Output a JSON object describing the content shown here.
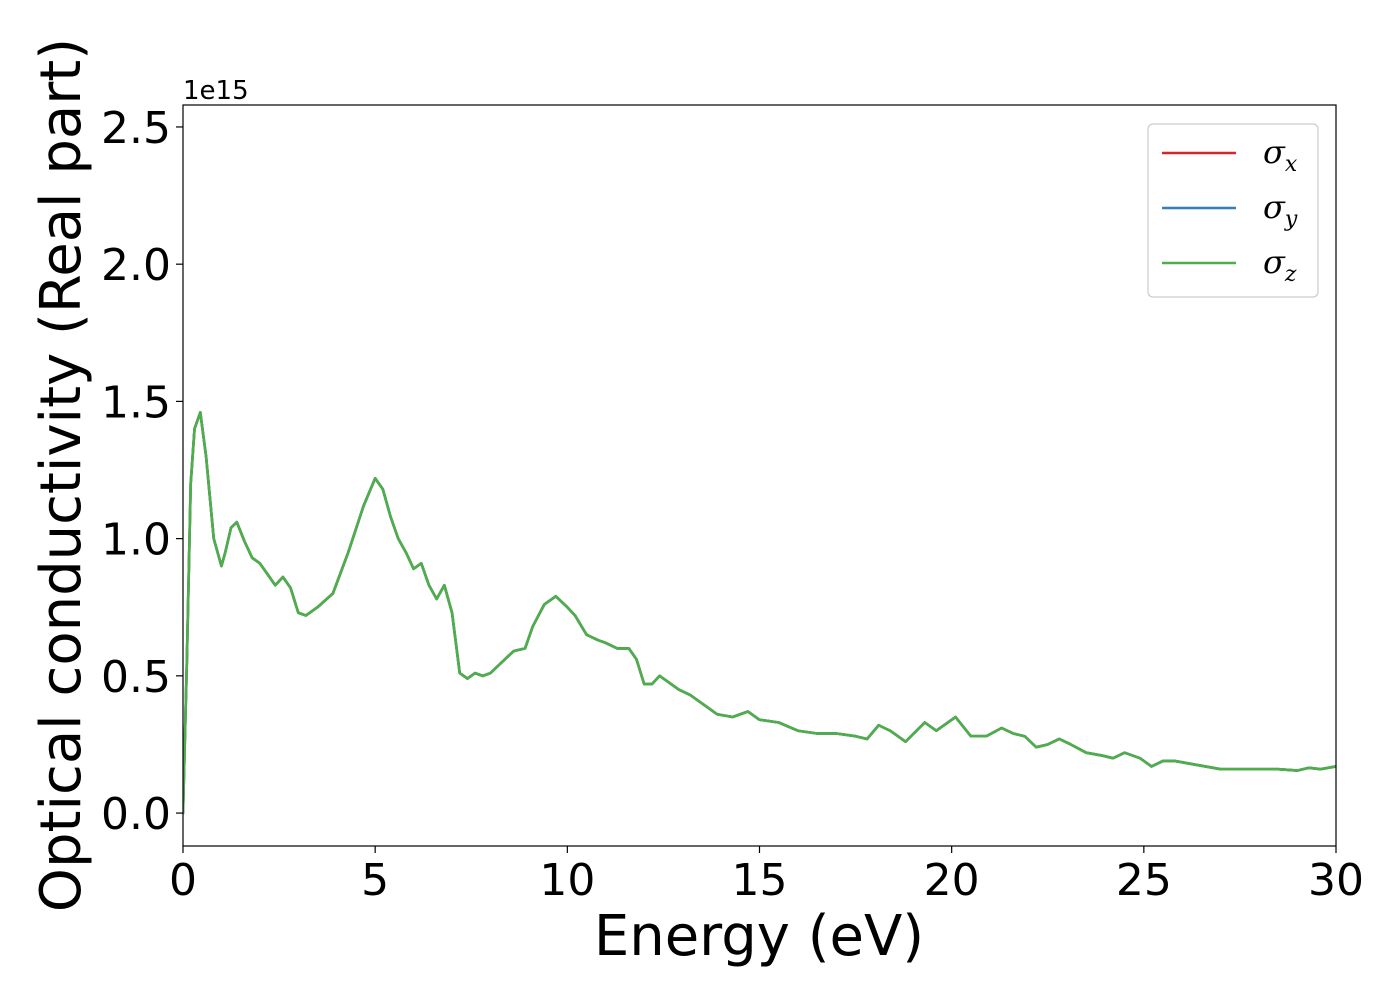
{
  "chart_data": {
    "type": "line",
    "xlabel": "Energy (eV)",
    "ylabel": "Optical conductivity (Real part)",
    "y_offset_label": "1e15",
    "xlim": [
      0,
      30
    ],
    "ylim": [
      -0.12,
      2.58
    ],
    "x_ticks": [
      0,
      5,
      10,
      15,
      20,
      25,
      30
    ],
    "x_tick_labels": [
      "0",
      "5",
      "10",
      "15",
      "20",
      "25",
      "30"
    ],
    "y_ticks": [
      0.0,
      0.5,
      1.0,
      1.5,
      2.0,
      2.5
    ],
    "y_tick_labels": [
      "0.0",
      "0.5",
      "1.0",
      "1.5",
      "2.0",
      "2.5"
    ],
    "grid": false,
    "legend_position": "top-right",
    "legend": [
      {
        "symbol": "σ",
        "subscript": "x",
        "color": "#d62728"
      },
      {
        "symbol": "σ",
        "subscript": "y",
        "color": "#377eb8"
      },
      {
        "symbol": "σ",
        "subscript": "z",
        "color": "#4daf4a"
      }
    ],
    "x": [
      0,
      0.1,
      0.2,
      0.3,
      0.45,
      0.6,
      0.8,
      1.0,
      1.1,
      1.25,
      1.4,
      1.6,
      1.8,
      2.0,
      2.2,
      2.4,
      2.6,
      2.8,
      3.0,
      3.2,
      3.5,
      3.9,
      4.3,
      4.7,
      5.0,
      5.2,
      5.4,
      5.6,
      5.8,
      6.0,
      6.2,
      6.4,
      6.6,
      6.8,
      7.0,
      7.2,
      7.4,
      7.6,
      7.8,
      8.0,
      8.3,
      8.6,
      8.9,
      9.1,
      9.4,
      9.7,
      10.0,
      10.2,
      10.5,
      10.8,
      11.0,
      11.3,
      11.6,
      11.8,
      12.0,
      12.2,
      12.4,
      12.6,
      12.9,
      13.2,
      13.5,
      13.9,
      14.3,
      14.7,
      15.0,
      15.5,
      16.0,
      16.5,
      17.0,
      17.5,
      17.8,
      18.1,
      18.4,
      18.8,
      19.3,
      19.6,
      20.1,
      20.5,
      20.9,
      21.3,
      21.6,
      21.9,
      22.2,
      22.5,
      22.8,
      23.1,
      23.5,
      23.9,
      24.2,
      24.5,
      24.9,
      25.2,
      25.5,
      25.8,
      26.2,
      26.6,
      27.0,
      27.5,
      28.0,
      28.5,
      29.0,
      29.3,
      29.6,
      30.0
    ],
    "series": [
      {
        "name": "σx",
        "color": "#d62728",
        "values": [
          0.0,
          0.55,
          1.2,
          1.4,
          1.46,
          1.3,
          1.0,
          0.9,
          0.95,
          1.04,
          1.06,
          0.99,
          0.93,
          0.91,
          0.87,
          0.83,
          0.86,
          0.82,
          0.73,
          0.72,
          0.75,
          0.8,
          0.95,
          1.12,
          1.22,
          1.18,
          1.08,
          1.0,
          0.95,
          0.89,
          0.91,
          0.83,
          0.78,
          0.83,
          0.73,
          0.51,
          0.49,
          0.51,
          0.5,
          0.51,
          0.55,
          0.59,
          0.6,
          0.68,
          0.76,
          0.79,
          0.75,
          0.72,
          0.65,
          0.63,
          0.62,
          0.6,
          0.6,
          0.56,
          0.47,
          0.47,
          0.5,
          0.48,
          0.45,
          0.43,
          0.4,
          0.36,
          0.35,
          0.37,
          0.34,
          0.33,
          0.3,
          0.29,
          0.29,
          0.28,
          0.27,
          0.32,
          0.3,
          0.26,
          0.33,
          0.3,
          0.35,
          0.28,
          0.28,
          0.31,
          0.29,
          0.28,
          0.24,
          0.25,
          0.27,
          0.25,
          0.22,
          0.21,
          0.2,
          0.22,
          0.2,
          0.17,
          0.19,
          0.19,
          0.18,
          0.17,
          0.16,
          0.16,
          0.16,
          0.16,
          0.155,
          0.165,
          0.16,
          0.17
        ]
      },
      {
        "name": "σy",
        "color": "#377eb8",
        "values": [
          0.0,
          0.55,
          1.2,
          1.4,
          1.46,
          1.3,
          1.0,
          0.9,
          0.95,
          1.04,
          1.06,
          0.99,
          0.93,
          0.91,
          0.87,
          0.83,
          0.86,
          0.82,
          0.73,
          0.72,
          0.75,
          0.8,
          0.95,
          1.12,
          1.22,
          1.18,
          1.08,
          1.0,
          0.95,
          0.89,
          0.91,
          0.83,
          0.78,
          0.83,
          0.73,
          0.51,
          0.49,
          0.51,
          0.5,
          0.51,
          0.55,
          0.59,
          0.6,
          0.68,
          0.76,
          0.79,
          0.75,
          0.72,
          0.65,
          0.63,
          0.62,
          0.6,
          0.6,
          0.56,
          0.47,
          0.47,
          0.5,
          0.48,
          0.45,
          0.43,
          0.4,
          0.36,
          0.35,
          0.37,
          0.34,
          0.33,
          0.3,
          0.29,
          0.29,
          0.28,
          0.27,
          0.32,
          0.3,
          0.26,
          0.33,
          0.3,
          0.35,
          0.28,
          0.28,
          0.31,
          0.29,
          0.28,
          0.24,
          0.25,
          0.27,
          0.25,
          0.22,
          0.21,
          0.2,
          0.22,
          0.2,
          0.17,
          0.19,
          0.19,
          0.18,
          0.17,
          0.16,
          0.16,
          0.16,
          0.16,
          0.155,
          0.165,
          0.16,
          0.17
        ]
      },
      {
        "name": "σz",
        "color": "#4daf4a",
        "values": [
          0.0,
          0.55,
          1.2,
          1.4,
          1.46,
          1.3,
          1.0,
          0.9,
          0.95,
          1.04,
          1.06,
          0.99,
          0.93,
          0.91,
          0.87,
          0.83,
          0.86,
          0.82,
          0.73,
          0.72,
          0.75,
          0.8,
          0.95,
          1.12,
          1.22,
          1.18,
          1.08,
          1.0,
          0.95,
          0.89,
          0.91,
          0.83,
          0.78,
          0.83,
          0.73,
          0.51,
          0.49,
          0.51,
          0.5,
          0.51,
          0.55,
          0.59,
          0.6,
          0.68,
          0.76,
          0.79,
          0.75,
          0.72,
          0.65,
          0.63,
          0.62,
          0.6,
          0.6,
          0.56,
          0.47,
          0.47,
          0.5,
          0.48,
          0.45,
          0.43,
          0.4,
          0.36,
          0.35,
          0.37,
          0.34,
          0.33,
          0.3,
          0.29,
          0.29,
          0.28,
          0.27,
          0.32,
          0.3,
          0.26,
          0.33,
          0.3,
          0.35,
          0.28,
          0.28,
          0.31,
          0.29,
          0.28,
          0.24,
          0.25,
          0.27,
          0.25,
          0.22,
          0.21,
          0.2,
          0.22,
          0.2,
          0.17,
          0.19,
          0.19,
          0.18,
          0.17,
          0.16,
          0.16,
          0.16,
          0.16,
          0.155,
          0.165,
          0.16,
          0.17
        ]
      }
    ]
  }
}
